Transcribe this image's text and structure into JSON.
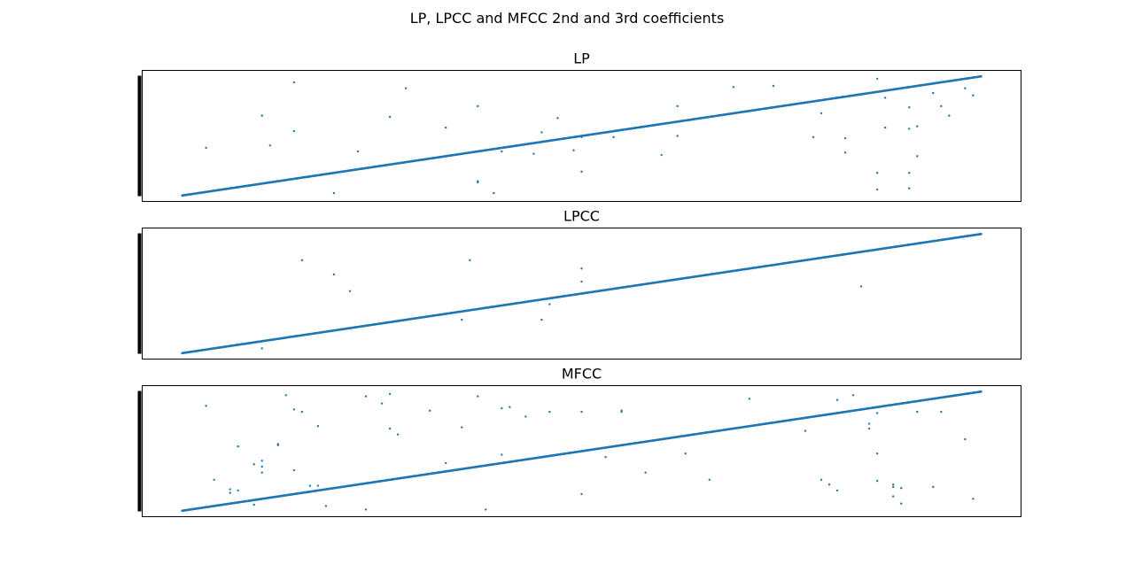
{
  "figure": {
    "suptitle": "LP, LPCC and MFCC 2nd and 3rd coefficients"
  },
  "colors": {
    "series": "#1f77b4",
    "axes": "#000000",
    "background": "#ffffff"
  },
  "chart_data": [
    {
      "type": "scatter",
      "title": "LP",
      "xlabel": "",
      "ylabel": "",
      "xlim": [
        -0.05,
        1.05
      ],
      "ylim": [
        -0.05,
        1.05
      ],
      "grid": false,
      "ticks_visible": false,
      "line_points": 1200,
      "line_start": [
        0,
        0
      ],
      "line_end": [
        1,
        1
      ],
      "outliers": [
        [
          0.03,
          0.4
        ],
        [
          0.1,
          0.67
        ],
        [
          0.11,
          0.42
        ],
        [
          0.14,
          0.95
        ],
        [
          0.14,
          0.54
        ],
        [
          0.19,
          0.02
        ],
        [
          0.22,
          0.37
        ],
        [
          0.26,
          0.66
        ],
        [
          0.28,
          0.9
        ],
        [
          0.33,
          0.57
        ],
        [
          0.37,
          0.75
        ],
        [
          0.37,
          0.11
        ],
        [
          0.37,
          0.12
        ],
        [
          0.39,
          0.02
        ],
        [
          0.4,
          0.37
        ],
        [
          0.44,
          0.35
        ],
        [
          0.45,
          0.53
        ],
        [
          0.47,
          0.65
        ],
        [
          0.49,
          0.38
        ],
        [
          0.5,
          0.49
        ],
        [
          0.5,
          0.2
        ],
        [
          0.54,
          0.49
        ],
        [
          0.6,
          0.34
        ],
        [
          0.62,
          0.75
        ],
        [
          0.62,
          0.5
        ],
        [
          0.69,
          0.91
        ],
        [
          0.74,
          0.92
        ],
        [
          0.8,
          0.69
        ],
        [
          0.79,
          0.49
        ],
        [
          0.83,
          0.48
        ],
        [
          0.83,
          0.36
        ],
        [
          0.87,
          0.19
        ],
        [
          0.87,
          0.98
        ],
        [
          0.87,
          0.05
        ],
        [
          0.88,
          0.82
        ],
        [
          0.88,
          0.57
        ],
        [
          0.91,
          0.19
        ],
        [
          0.91,
          0.06
        ],
        [
          0.91,
          0.74
        ],
        [
          0.91,
          0.56
        ],
        [
          0.92,
          0.33
        ],
        [
          0.92,
          0.58
        ],
        [
          0.94,
          0.86
        ],
        [
          0.95,
          0.75
        ],
        [
          0.96,
          0.67
        ],
        [
          0.98,
          0.9
        ],
        [
          0.99,
          0.84
        ]
      ]
    },
    {
      "type": "scatter",
      "title": "LPCC",
      "xlabel": "",
      "ylabel": "",
      "xlim": [
        -0.05,
        1.05
      ],
      "ylim": [
        -0.05,
        1.05
      ],
      "grid": false,
      "ticks_visible": false,
      "line_points": 1200,
      "line_start": [
        0,
        0
      ],
      "line_end": [
        1,
        1
      ],
      "outliers": [
        [
          0.15,
          0.78
        ],
        [
          0.19,
          0.66
        ],
        [
          0.21,
          0.52
        ],
        [
          0.35,
          0.28
        ],
        [
          0.36,
          0.78
        ],
        [
          0.45,
          0.28
        ],
        [
          0.5,
          0.71
        ],
        [
          0.5,
          0.6
        ],
        [
          0.85,
          0.56
        ],
        [
          0.46,
          0.41
        ],
        [
          0.1,
          0.04
        ]
      ]
    },
    {
      "type": "scatter",
      "title": "MFCC",
      "xlabel": "",
      "ylabel": "",
      "xlim": [
        -0.05,
        1.05
      ],
      "ylim": [
        -0.05,
        1.05
      ],
      "grid": false,
      "ticks_visible": false,
      "line_points": 1200,
      "line_start": [
        0,
        0
      ],
      "line_end": [
        1,
        1
      ],
      "outliers": [
        [
          0.03,
          0.88
        ],
        [
          0.04,
          0.26
        ],
        [
          0.06,
          0.18
        ],
        [
          0.06,
          0.15
        ],
        [
          0.07,
          0.54
        ],
        [
          0.07,
          0.17
        ],
        [
          0.09,
          0.39
        ],
        [
          0.09,
          0.05
        ],
        [
          0.1,
          0.32
        ],
        [
          0.1,
          0.42
        ],
        [
          0.1,
          0.37
        ],
        [
          0.12,
          0.56
        ],
        [
          0.12,
          0.55
        ],
        [
          0.13,
          0.97
        ],
        [
          0.14,
          0.34
        ],
        [
          0.14,
          0.85
        ],
        [
          0.15,
          0.83
        ],
        [
          0.16,
          0.21
        ],
        [
          0.17,
          0.21
        ],
        [
          0.18,
          0.04
        ],
        [
          0.17,
          0.71
        ],
        [
          0.23,
          0.01
        ],
        [
          0.23,
          0.96
        ],
        [
          0.25,
          0.9
        ],
        [
          0.26,
          0.98
        ],
        [
          0.26,
          0.69
        ],
        [
          0.27,
          0.64
        ],
        [
          0.31,
          0.84
        ],
        [
          0.33,
          0.4
        ],
        [
          0.35,
          0.7
        ],
        [
          0.37,
          0.96
        ],
        [
          0.38,
          0.01
        ],
        [
          0.4,
          0.47
        ],
        [
          0.4,
          0.86
        ],
        [
          0.41,
          0.87
        ],
        [
          0.43,
          0.79
        ],
        [
          0.46,
          0.83
        ],
        [
          0.5,
          0.14
        ],
        [
          0.5,
          0.83
        ],
        [
          0.53,
          0.45
        ],
        [
          0.55,
          0.83
        ],
        [
          0.55,
          0.84
        ],
        [
          0.58,
          0.32
        ],
        [
          0.63,
          0.48
        ],
        [
          0.66,
          0.26
        ],
        [
          0.71,
          0.94
        ],
        [
          0.78,
          0.67
        ],
        [
          0.8,
          0.26
        ],
        [
          0.81,
          0.22
        ],
        [
          0.82,
          0.17
        ],
        [
          0.82,
          0.93
        ],
        [
          0.84,
          0.97
        ],
        [
          0.86,
          0.73
        ],
        [
          0.86,
          0.69
        ],
        [
          0.87,
          0.48
        ],
        [
          0.87,
          0.82
        ],
        [
          0.87,
          0.25
        ],
        [
          0.89,
          0.22
        ],
        [
          0.89,
          0.2
        ],
        [
          0.89,
          0.12
        ],
        [
          0.9,
          0.06
        ],
        [
          0.9,
          0.19
        ],
        [
          0.92,
          0.83
        ],
        [
          0.94,
          0.2
        ],
        [
          0.95,
          0.83
        ],
        [
          0.98,
          0.6
        ],
        [
          0.99,
          0.1
        ]
      ]
    }
  ]
}
